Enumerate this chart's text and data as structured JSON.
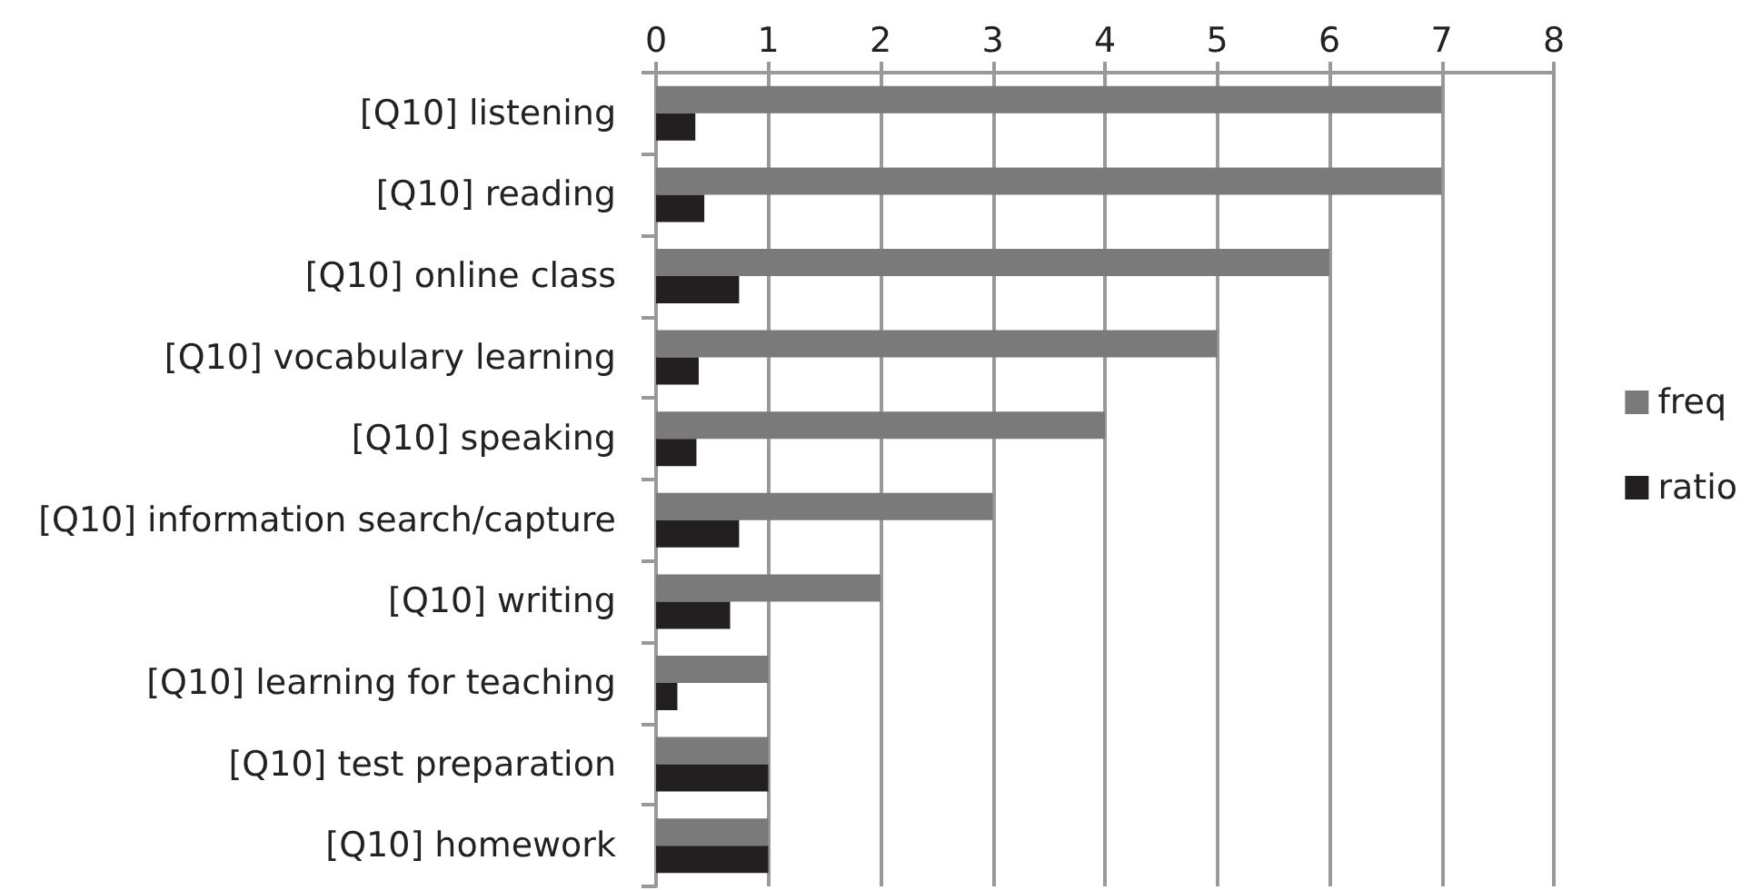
{
  "chart_data": {
    "type": "bar",
    "orientation": "horizontal",
    "categories": [
      "[Q10] listening",
      "[Q10] reading",
      "[Q10] online class",
      "[Q10] vocabulary learning",
      "[Q10] speaking",
      "[Q10] information search/capture",
      "[Q10] writing",
      "[Q10] learning for teaching",
      "[Q10] test preparation",
      "[Q10] homework"
    ],
    "series": [
      {
        "name": "freq",
        "color": "#7a7a7a",
        "values": [
          7,
          7,
          6,
          5,
          4,
          3,
          2,
          1,
          1,
          1
        ]
      },
      {
        "name": "ratio",
        "color": "#231f20",
        "values": [
          0.35,
          0.43,
          0.74,
          0.38,
          0.36,
          0.74,
          0.66,
          0.19,
          1,
          1
        ]
      }
    ],
    "xlim": [
      0,
      8
    ],
    "xticks": [
      0,
      1,
      2,
      3,
      4,
      5,
      6,
      7,
      8
    ],
    "grid": "x",
    "legend": "right"
  }
}
